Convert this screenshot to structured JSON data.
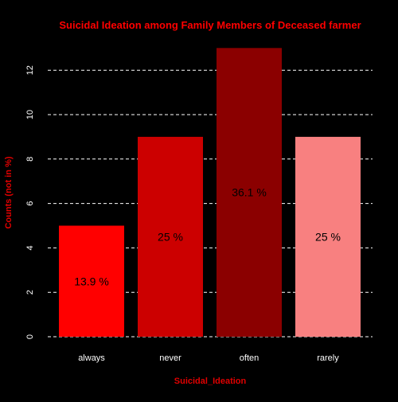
{
  "chart_data": {
    "type": "bar",
    "title": "Suicidal Ideation among Family Members of Deceased farmer",
    "xlabel": "Suicidal_Ideation",
    "ylabel": "Counts (not in %)",
    "categories": [
      "always",
      "never",
      "often",
      "rarely"
    ],
    "values": [
      5,
      9,
      13,
      9
    ],
    "data_labels": [
      "13.9 %",
      "25 %",
      "36.1 %",
      "25 %"
    ],
    "bar_colors": [
      "#FF0000",
      "#CC0000",
      "#8B0000",
      "#F88080"
    ],
    "ylim": [
      0,
      13
    ],
    "yticks": [
      0,
      2,
      4,
      6,
      8,
      10,
      12
    ],
    "grid": "horizontal-dashed",
    "colors": {
      "background": "#000000",
      "title": "#FF0000",
      "axis_label": "#E00000",
      "text": "#FFFFFF",
      "grid": "#FFFFFF",
      "data_label": "#000000"
    }
  }
}
